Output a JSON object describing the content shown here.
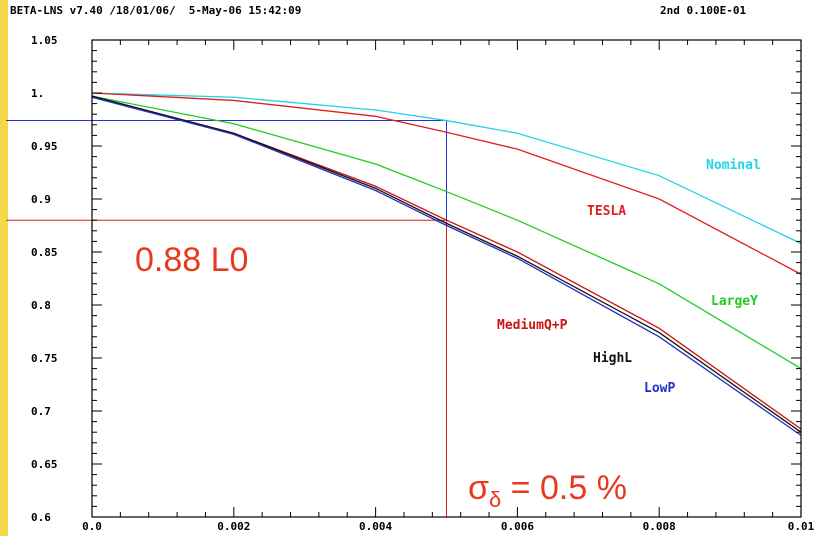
{
  "header": {
    "left": "BETA-LNS v7.40 /18/01/06/  5-May-06 15:42:09",
    "right": "2nd 0.100E-01"
  },
  "colors": {
    "axis": "#000000",
    "background": "#ffffff",
    "sidebar": "#f5d84a",
    "annotation": "#e8391c"
  },
  "chart_data": {
    "type": "line",
    "title": "",
    "xlabel": "",
    "ylabel": "",
    "xlim": [
      0,
      0.01
    ],
    "ylim": [
      0.6,
      1.05
    ],
    "x_ticks": [
      0,
      0.002,
      0.004,
      0.006,
      0.008,
      0.01
    ],
    "x_tick_labels": [
      "0.0",
      "0.002",
      "0.004",
      "0.006",
      "0.008",
      "0.01"
    ],
    "y_ticks": [
      0.6,
      0.65,
      0.7,
      0.75,
      0.8,
      0.85,
      0.9,
      0.95,
      1.0,
      1.05
    ],
    "y_tick_labels": [
      "0.6",
      "0.65",
      "0.7",
      "0.75",
      "0.8",
      "0.85",
      "0.9",
      "0.95",
      "1.",
      "1.05"
    ],
    "grid": false,
    "x": [
      0,
      0.002,
      0.004,
      0.005,
      0.006,
      0.008,
      0.01
    ],
    "series": [
      {
        "name": "Nominal",
        "color": "#22d3e6",
        "values": [
          1.0,
          0.996,
          0.984,
          0.974,
          0.962,
          0.922,
          0.858
        ]
      },
      {
        "name": "TESLA",
        "color": "#e02020",
        "values": [
          1.0,
          0.993,
          0.978,
          0.963,
          0.947,
          0.9,
          0.829
        ]
      },
      {
        "name": "LargeY",
        "color": "#22cc22",
        "values": [
          0.997,
          0.971,
          0.933,
          0.907,
          0.88,
          0.82,
          0.74
        ]
      },
      {
        "name": "MediumQ+P",
        "color": "#cc1111",
        "values": [
          0.997,
          0.962,
          0.912,
          0.88,
          0.85,
          0.778,
          0.683
        ]
      },
      {
        "name": "HighL",
        "color": "#111111",
        "values": [
          0.997,
          0.962,
          0.91,
          0.877,
          0.846,
          0.774,
          0.68
        ]
      },
      {
        "name": "LowP",
        "color": "#1f2fc0",
        "values": [
          0.996,
          0.961,
          0.908,
          0.875,
          0.844,
          0.77,
          0.677
        ]
      }
    ],
    "reference_lines": [
      {
        "color": "#2233cc",
        "x": 0.005,
        "y": 0.974
      },
      {
        "color": "#d42020",
        "x": 0.005,
        "y": 0.88
      }
    ],
    "annotations": [
      {
        "id": "lumi",
        "text": "0.88 L0"
      },
      {
        "id": "sigma",
        "text": "σ",
        "subscript": "δ",
        "suffix": " = 0.5 %"
      }
    ]
  }
}
